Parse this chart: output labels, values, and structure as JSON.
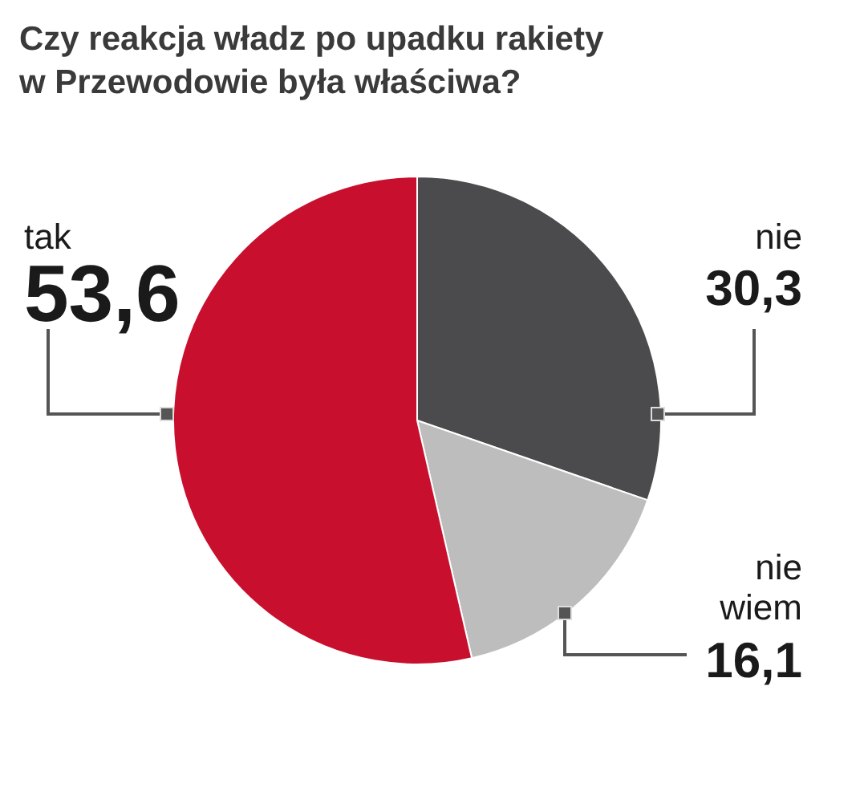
{
  "chart_data": {
    "type": "pie",
    "title": "Czy reakcja władz po upadku rakiety w Przewodowie była właściwa?",
    "categories": [
      "nie",
      "nie wiem",
      "tak"
    ],
    "values": [
      30.3,
      16.1,
      53.6
    ],
    "value_labels": [
      "30,3",
      "16,1",
      "53,6"
    ],
    "colors": [
      "#4b4b4d",
      "#bdbdbd",
      "#c8102e"
    ],
    "legend": false
  }
}
